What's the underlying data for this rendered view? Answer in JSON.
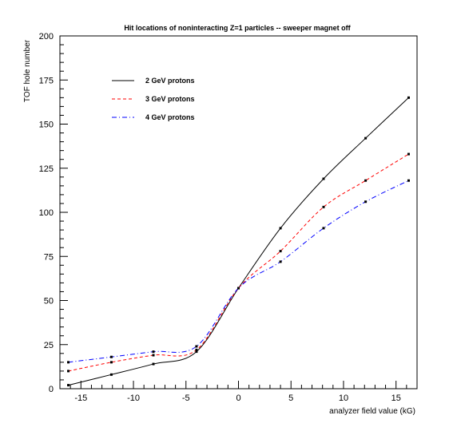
{
  "chart_data": {
    "type": "line",
    "title": "Hit locations of noninteracting Z=1 particles -- sweeper magnet off",
    "xlabel": "analyzer field value (kG)",
    "ylabel": "TOF hole number",
    "xlim": [
      -17,
      17
    ],
    "ylim": [
      0,
      200
    ],
    "x_ticks": [
      -15,
      -10,
      -5,
      0,
      5,
      10,
      15
    ],
    "y_ticks": [
      0,
      25,
      50,
      75,
      100,
      125,
      150,
      175,
      200
    ],
    "grid": false,
    "legend_position": "top-left",
    "series": [
      {
        "name": "2 GeV protons",
        "color": "#000000",
        "line_style": "solid",
        "x": [
          -16.2,
          -12.1,
          -8.1,
          -4.0,
          0,
          4.0,
          8.1,
          12.1,
          16.2
        ],
        "y": [
          2,
          8,
          14,
          21,
          57,
          91,
          119,
          142,
          165
        ]
      },
      {
        "name": "3 GeV protons",
        "color": "#ff0000",
        "line_style": "dashed",
        "x": [
          -16.2,
          -12.1,
          -8.1,
          -4.0,
          0,
          4.0,
          8.1,
          12.1,
          16.2
        ],
        "y": [
          10,
          15,
          19,
          22,
          57,
          78,
          103,
          118,
          133
        ]
      },
      {
        "name": "4 GeV protons",
        "color": "#0000ff",
        "line_style": "dashdot",
        "x": [
          -16.2,
          -12.1,
          -8.1,
          -4.0,
          0,
          4.0,
          8.1,
          12.1,
          16.2
        ],
        "y": [
          15,
          18,
          21,
          24,
          57,
          72,
          91,
          106,
          118
        ]
      }
    ]
  }
}
